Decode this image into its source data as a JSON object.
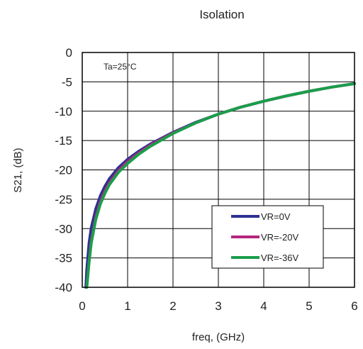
{
  "chart_data": {
    "type": "line",
    "title": "Isolation",
    "xlabel": "freq, (GHz)",
    "ylabel": "S21, (dB)",
    "annotation": "Ta=25°C",
    "xlim": [
      0,
      6
    ],
    "ylim": [
      -40,
      0
    ],
    "xticks": [
      0,
      1,
      2,
      3,
      4,
      5,
      6
    ],
    "yticks": [
      0,
      -5,
      -10,
      -15,
      -20,
      -25,
      -30,
      -35,
      -40
    ],
    "grid": true,
    "legend_position": "bottom-right",
    "series": [
      {
        "name": "VR=0V",
        "color": "#2e3192",
        "x": [
          0.08,
          0.1,
          0.15,
          0.2,
          0.3,
          0.4,
          0.5,
          0.6,
          0.8,
          1.0,
          1.25,
          1.5,
          2.0,
          2.5,
          3.0,
          3.5,
          4.0,
          4.5,
          5.0,
          5.5,
          6.0
        ],
        "y": [
          -40.0,
          -37.0,
          -32.5,
          -29.8,
          -26.6,
          -24.4,
          -22.8,
          -21.5,
          -19.6,
          -18.2,
          -16.8,
          -15.6,
          -13.6,
          -11.9,
          -10.5,
          -9.3,
          -8.3,
          -7.4,
          -6.6,
          -5.9,
          -5.3
        ]
      },
      {
        "name": "VR=-20V",
        "color": "#b5267e",
        "x": [
          0.1,
          0.15,
          0.2,
          0.3,
          0.4,
          0.5,
          0.6,
          0.8,
          1.0,
          1.25,
          1.5,
          2.0,
          2.5,
          3.0,
          3.5,
          4.0,
          4.5,
          5.0,
          5.5,
          6.0
        ],
        "y": [
          -40.0,
          -35.5,
          -32.0,
          -28.0,
          -25.4,
          -23.6,
          -22.2,
          -20.1,
          -18.6,
          -17.1,
          -15.8,
          -13.7,
          -12.0,
          -10.5,
          -9.3,
          -8.3,
          -7.4,
          -6.6,
          -5.9,
          -5.3
        ]
      },
      {
        "name": "VR=-36V",
        "color": "#1a9e4a",
        "x": [
          0.1,
          0.15,
          0.2,
          0.3,
          0.4,
          0.5,
          0.6,
          0.8,
          1.0,
          1.25,
          1.5,
          2.0,
          2.5,
          3.0,
          3.5,
          4.0,
          4.5,
          5.0,
          5.5,
          6.0
        ],
        "y": [
          -40.0,
          -35.8,
          -32.4,
          -28.4,
          -25.8,
          -24.0,
          -22.5,
          -20.4,
          -18.9,
          -17.3,
          -16.0,
          -13.8,
          -12.0,
          -10.5,
          -9.3,
          -8.3,
          -7.4,
          -6.6,
          -5.9,
          -5.3
        ]
      }
    ]
  }
}
